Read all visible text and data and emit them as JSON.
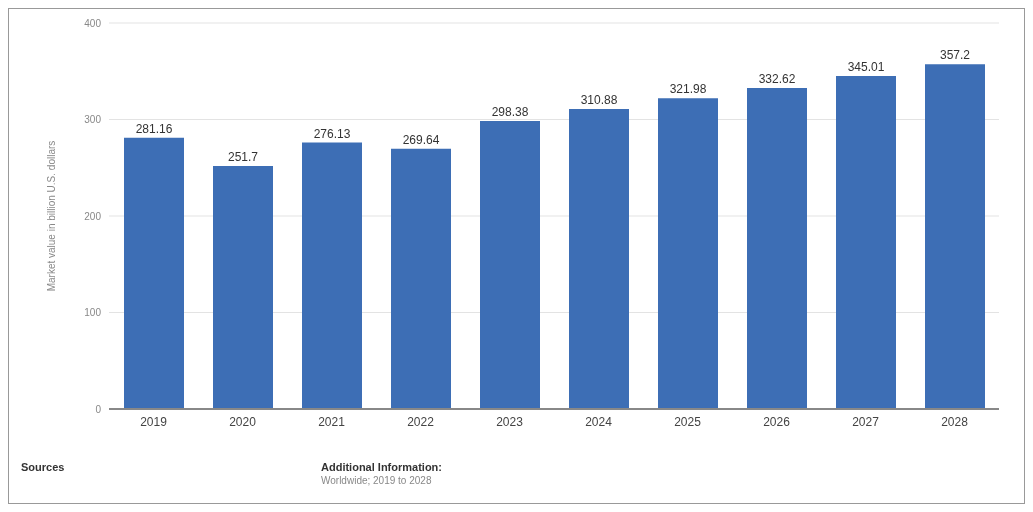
{
  "chart_data": {
    "type": "bar",
    "ylabel": "Market value in billion U.S. dollars",
    "categories": [
      "2019",
      "2020",
      "2021",
      "2022",
      "2023",
      "2024",
      "2025",
      "2026",
      "2027",
      "2028"
    ],
    "values": [
      281.16,
      251.7,
      276.13,
      269.64,
      298.38,
      310.88,
      321.98,
      332.62,
      345.01,
      357.2
    ],
    "color": "#3d6eb5",
    "ylim": [
      0,
      400
    ],
    "yticks": [
      0,
      100,
      200,
      300,
      400
    ],
    "grid": "y",
    "data_labels": true,
    "annotations": [
      "Sources",
      "Additional Information:",
      "Worldwide; 2019 to 2028"
    ]
  }
}
